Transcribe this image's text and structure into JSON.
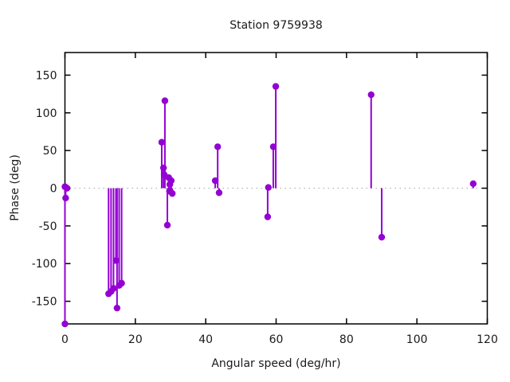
{
  "chart_data": {
    "type": "scatter",
    "style": "impulses-with-points",
    "title": "Station 9759938",
    "xlabel": "Angular speed (deg/hr)",
    "ylabel": "Phase (deg)",
    "xlim": [
      0,
      120
    ],
    "ylim": [
      -180,
      180
    ],
    "xticks": [
      0,
      20,
      40,
      60,
      80,
      100,
      120
    ],
    "yticks": [
      -150,
      -100,
      -50,
      0,
      50,
      100,
      150
    ],
    "grid": false,
    "zero_line": true,
    "legend": "none",
    "point_color": "#9400d3",
    "zero_line_color": "#b3b3b3",
    "axis_color": "#000000",
    "text_color": "#1a1a1a",
    "points": [
      {
        "x": 0.0,
        "y": 2
      },
      {
        "x": 0.6,
        "y": 0
      },
      {
        "x": 0.2,
        "y": -13
      },
      {
        "x": 0.0,
        "y": -180
      },
      {
        "x": 12.4,
        "y": -140
      },
      {
        "x": 13.1,
        "y": -137
      },
      {
        "x": 13.8,
        "y": -133
      },
      {
        "x": 14.5,
        "y": -96
      },
      {
        "x": 14.8,
        "y": -159
      },
      {
        "x": 15.4,
        "y": -129
      },
      {
        "x": 16.1,
        "y": -126
      },
      {
        "x": 27.5,
        "y": 61
      },
      {
        "x": 28.0,
        "y": 27
      },
      {
        "x": 28.2,
        "y": 18
      },
      {
        "x": 28.4,
        "y": 116
      },
      {
        "x": 29.1,
        "y": -49
      },
      {
        "x": 29.5,
        "y": 14
      },
      {
        "x": 29.7,
        "y": -4
      },
      {
        "x": 29.8,
        "y": 5
      },
      {
        "x": 30.2,
        "y": 10
      },
      {
        "x": 30.5,
        "y": -7
      },
      {
        "x": 42.7,
        "y": 10
      },
      {
        "x": 43.4,
        "y": 55
      },
      {
        "x": 43.8,
        "y": -6
      },
      {
        "x": 57.6,
        "y": -38
      },
      {
        "x": 57.8,
        "y": 1
      },
      {
        "x": 59.2,
        "y": 55
      },
      {
        "x": 59.9,
        "y": 135
      },
      {
        "x": 87.0,
        "y": 124
      },
      {
        "x": 90.0,
        "y": -65
      },
      {
        "x": 116.0,
        "y": 6
      }
    ]
  }
}
